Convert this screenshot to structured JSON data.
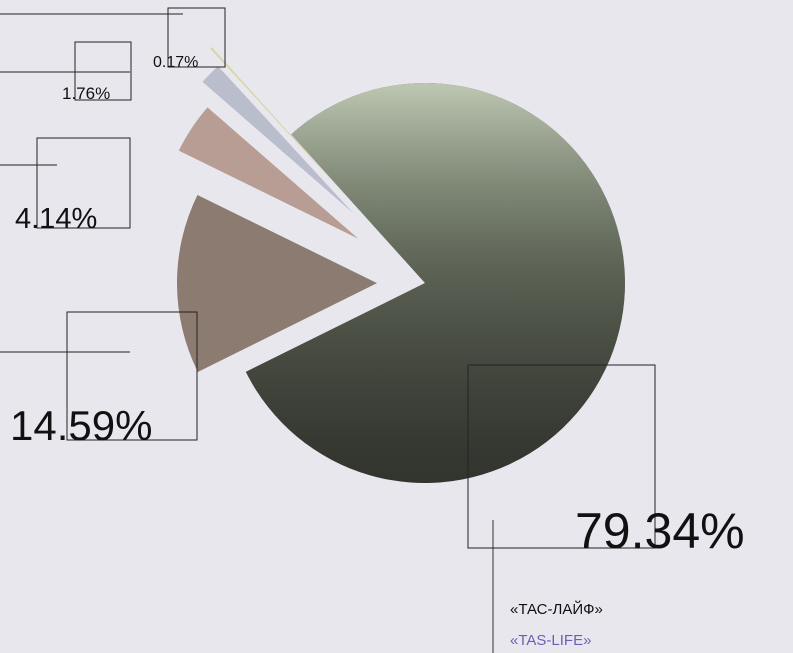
{
  "chart_data": {
    "type": "pie",
    "values": [
      79.34,
      14.59,
      4.14,
      1.76,
      0.17
    ],
    "value_labels": [
      "79.34%",
      "14.59%",
      "4.14%",
      "1.76%",
      "0.17%"
    ],
    "colors": [
      "#3e4139",
      "#8b7b70",
      "#b79d93",
      "#b9bdcc",
      "#d6d6a6"
    ],
    "annotations": [
      "«ТАС-ЛАЙФ»",
      "«TAS-LIFE»"
    ]
  }
}
